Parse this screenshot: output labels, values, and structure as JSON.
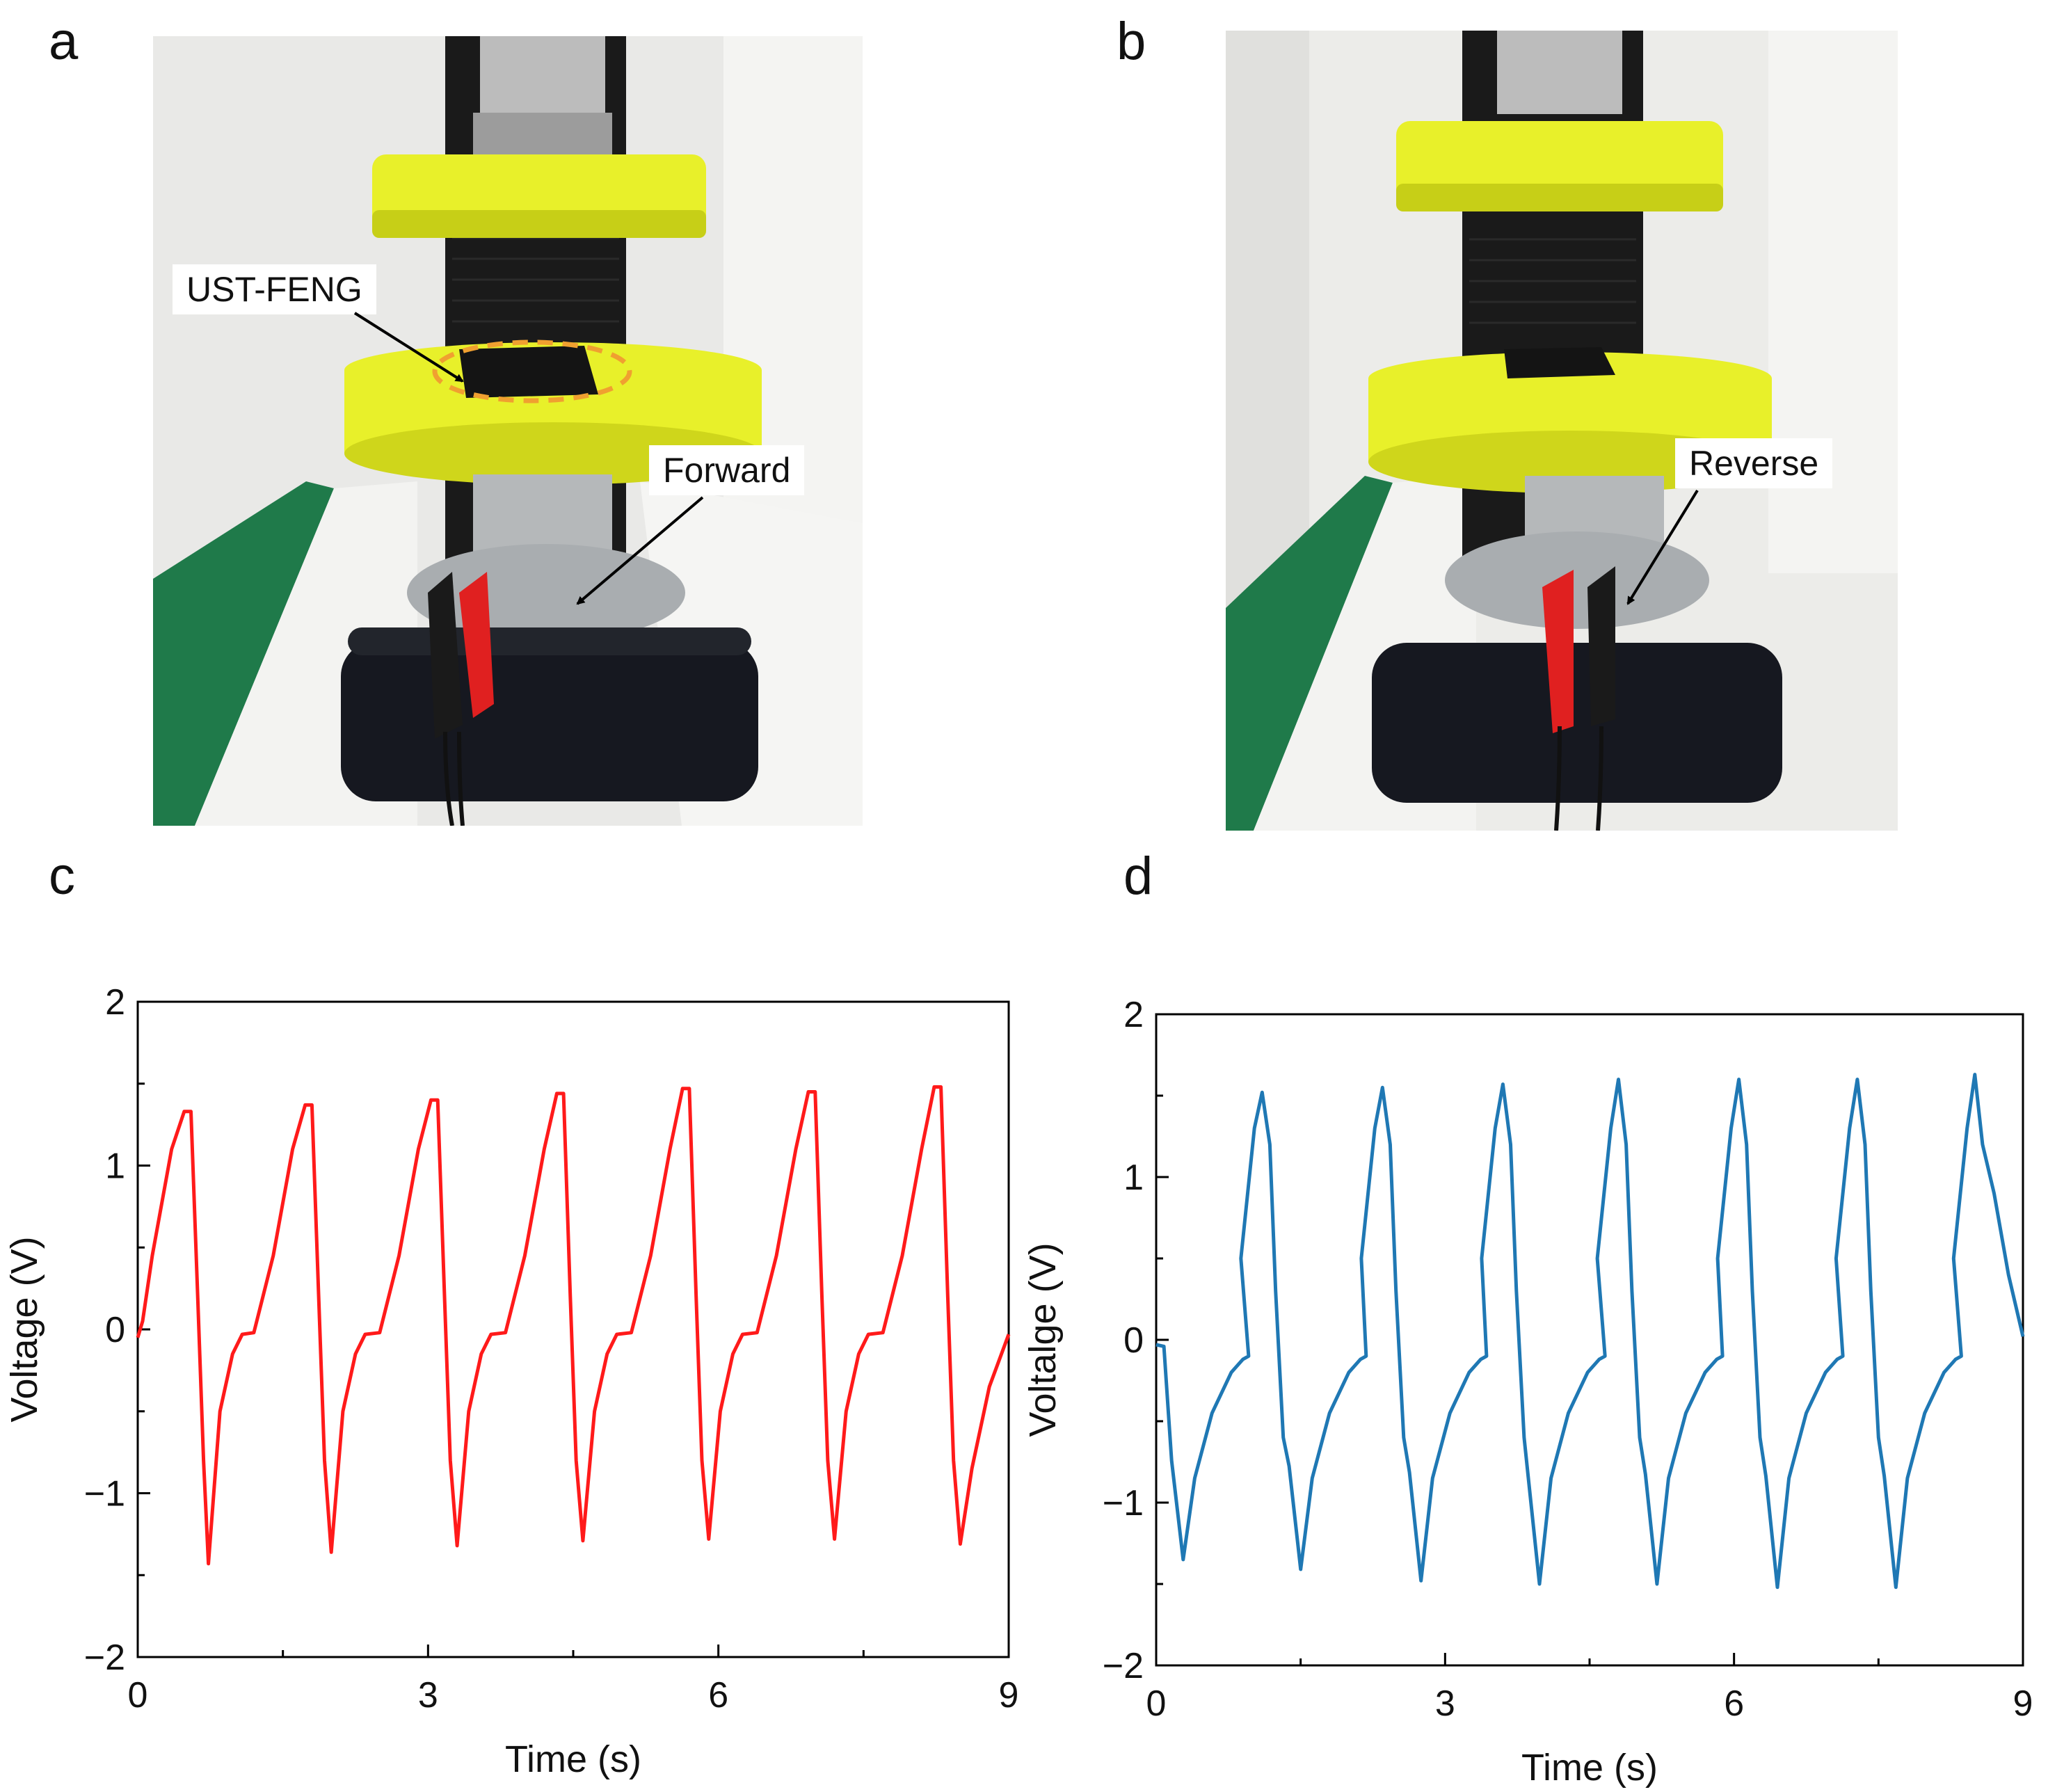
{
  "figure": {
    "panels": {
      "a": {
        "letter": "a",
        "callout_label": "UST-FENG",
        "arrow_label": "Forward"
      },
      "b": {
        "letter": "b",
        "arrow_label": "Reverse"
      },
      "c": {
        "letter": "c"
      },
      "d": {
        "letter": "d"
      }
    }
  },
  "colors": {
    "series_c": "#ff1a1a",
    "series_d": "#1f78b4",
    "tape_yellow": "#e8f02a",
    "clip_red": "#e02020"
  },
  "chart_data": [
    {
      "id": "c",
      "type": "line",
      "xlabel": "Time (s)",
      "ylabel": "Voltage (V)",
      "xlim": [
        0,
        9
      ],
      "ylim": [
        -2,
        2
      ],
      "xticks": [
        0,
        3,
        6,
        9
      ],
      "xtick_labels": [
        "0",
        "3",
        "6",
        "9"
      ],
      "yticks": [
        -2,
        -1,
        0,
        1,
        2
      ],
      "ytick_labels": [
        "−2",
        "−1",
        "0",
        "1",
        "2"
      ],
      "grid": false,
      "series": [
        {
          "name": "Forward",
          "color": "#ff1a1a",
          "peaks": [
            {
              "t_peak": 0.5,
              "v_peak": 1.33,
              "t_trough": 0.73,
              "v_trough": -1.43
            },
            {
              "t_peak": 1.75,
              "v_peak": 1.37,
              "t_trough": 2.0,
              "v_trough": -1.36
            },
            {
              "t_peak": 3.05,
              "v_peak": 1.4,
              "t_trough": 3.3,
              "v_trough": -1.32
            },
            {
              "t_peak": 4.35,
              "v_peak": 1.44,
              "t_trough": 4.6,
              "v_trough": -1.29
            },
            {
              "t_peak": 5.65,
              "v_peak": 1.47,
              "t_trough": 5.9,
              "v_trough": -1.28
            },
            {
              "t_peak": 6.95,
              "v_peak": 1.45,
              "t_trough": 7.2,
              "v_trough": -1.28
            },
            {
              "t_peak": 8.25,
              "v_peak": 1.48,
              "t_trough": 8.5,
              "v_trough": -1.31
            }
          ]
        }
      ]
    },
    {
      "id": "d",
      "type": "line",
      "xlabel": "Time (s)",
      "ylabel": "Voltalge (V)",
      "xlim": [
        0,
        9
      ],
      "ylim": [
        -2,
        2
      ],
      "xticks": [
        0,
        3,
        6,
        9
      ],
      "xtick_labels": [
        "0",
        "3",
        "6",
        "9"
      ],
      "yticks": [
        -2,
        -1,
        0,
        1,
        2
      ],
      "ytick_labels": [
        "−2",
        "−1",
        "0",
        "1",
        "2"
      ],
      "grid": false,
      "series": [
        {
          "name": "Reverse",
          "color": "#1f78b4",
          "troughs": [
            {
              "t": 0.28,
              "v": -1.35
            },
            {
              "t": 1.5,
              "v": -1.41
            },
            {
              "t": 2.75,
              "v": -1.48
            },
            {
              "t": 3.98,
              "v": -1.5
            },
            {
              "t": 5.2,
              "v": -1.5
            },
            {
              "t": 6.45,
              "v": -1.52
            },
            {
              "t": 7.68,
              "v": -1.52
            }
          ],
          "peaks": [
            {
              "t": 1.1,
              "v": 1.52
            },
            {
              "t": 2.35,
              "v": 1.55
            },
            {
              "t": 3.6,
              "v": 1.57
            },
            {
              "t": 4.8,
              "v": 1.6
            },
            {
              "t": 6.05,
              "v": 1.6
            },
            {
              "t": 7.28,
              "v": 1.6
            },
            {
              "t": 8.5,
              "v": 1.63
            }
          ]
        }
      ]
    }
  ]
}
